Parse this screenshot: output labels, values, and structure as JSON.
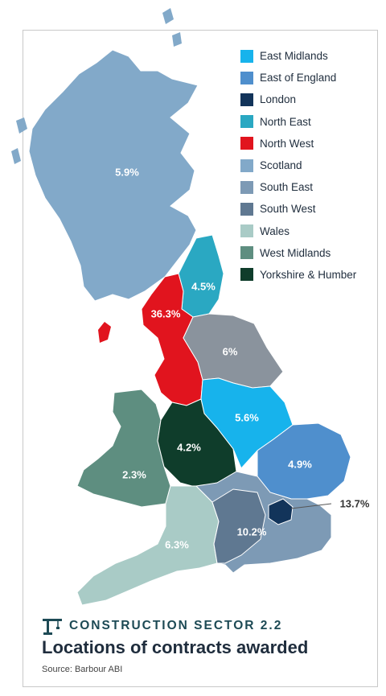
{
  "legend": [
    {
      "label": "East Midlands",
      "color": "#17b3ec"
    },
    {
      "label": "East of England",
      "color": "#4f8fcd"
    },
    {
      "label": "London",
      "color": "#12345a"
    },
    {
      "label": "North East",
      "color": "#2aa8c2"
    },
    {
      "label": "North West",
      "color": "#e1141e"
    },
    {
      "label": "Scotland",
      "color": "#82a9c9"
    },
    {
      "label": "South East",
      "color": "#7d9ab5"
    },
    {
      "label": "South West",
      "color": "#5f7891"
    },
    {
      "label": "Wales",
      "color": "#a9cbc6"
    },
    {
      "label": "West Midlands",
      "color": "#5e8e80"
    },
    {
      "label": "Yorkshire & Humber",
      "color": "#0f3d2b"
    }
  ],
  "region_colors": {
    "yorkshire_map_fill": "#8a939d"
  },
  "values": {
    "scotland": "5.9%",
    "north_east": "4.5%",
    "north_west": "36.3%",
    "yorkshire": "6%",
    "east_midlands": "5.6%",
    "west_midlands": "4.2%",
    "east_of_england": "4.9%",
    "wales": "2.3%",
    "london": "13.7%",
    "south_east": "10.2%",
    "south_west": "6.3%"
  },
  "footer": {
    "section": "CONSTRUCTION SECTOR 2.2",
    "title": "Locations of contracts awarded",
    "source": "Source: Barbour ABI"
  }
}
